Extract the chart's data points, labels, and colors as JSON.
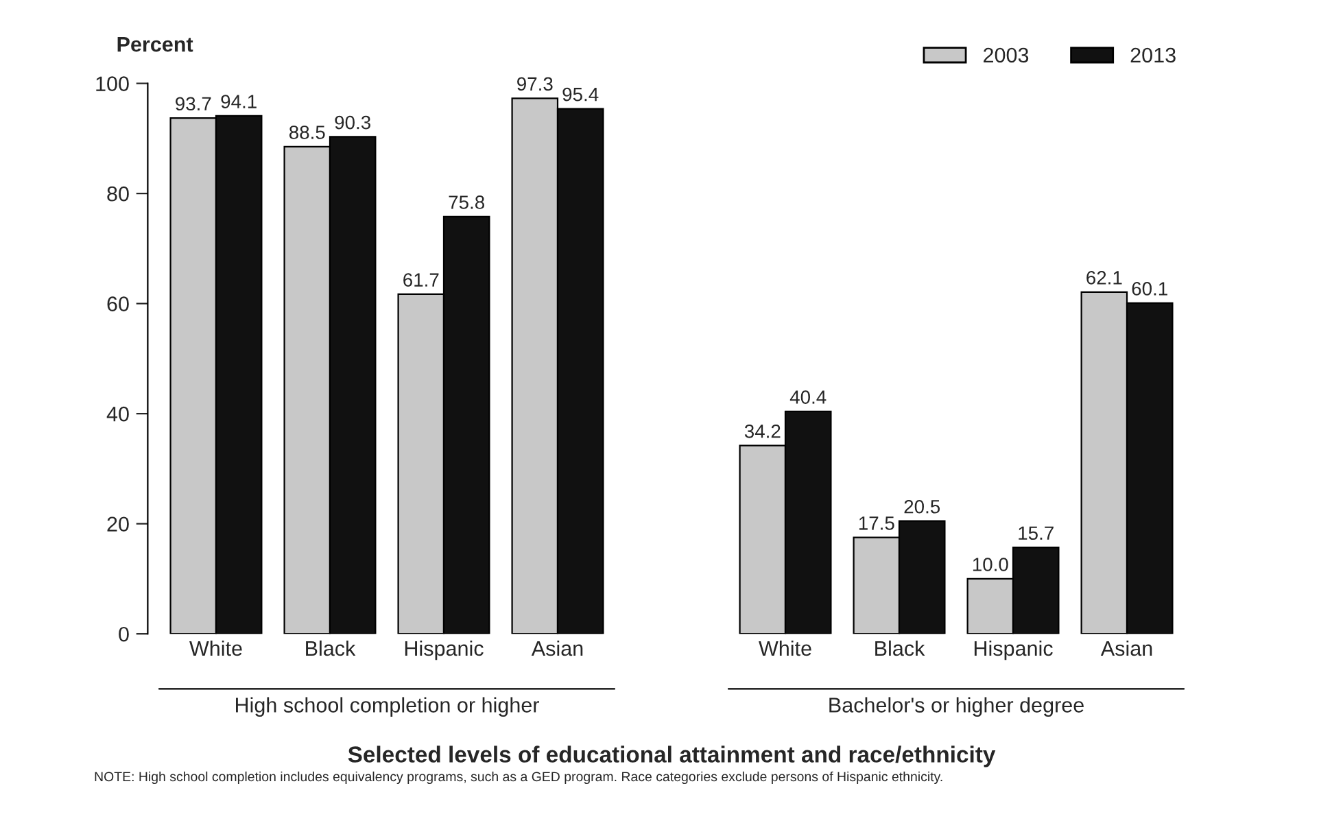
{
  "chart_data": {
    "type": "bar",
    "ylabel": "Percent",
    "xlabel": "Selected levels of educational attainment and race/ethnicity",
    "categories": [
      "White",
      "Black",
      "Hispanic",
      "Asian",
      null,
      "White",
      "Black",
      "Hispanic",
      "Asian"
    ],
    "series": [
      {
        "name": "2003",
        "color": "#c8c8c8",
        "values": [
          93.7,
          88.5,
          61.7,
          97.3,
          null,
          34.2,
          17.5,
          10.0,
          62.1
        ]
      },
      {
        "name": "2013",
        "color": "#111111",
        "values": [
          94.1,
          90.3,
          75.8,
          95.4,
          null,
          40.4,
          20.5,
          15.7,
          60.1
        ]
      }
    ],
    "value_labels": [
      [
        "93.7",
        "88.5",
        "61.7",
        "97.3",
        null,
        "34.2",
        "17.5",
        "10.0",
        "62.1"
      ],
      [
        "94.1",
        "90.3",
        "75.8",
        "95.4",
        null,
        "40.4",
        "20.5",
        "15.7",
        "60.1"
      ]
    ],
    "ylim": [
      0,
      100
    ],
    "yticks": [
      0,
      20,
      40,
      60,
      80,
      100
    ],
    "grid": false,
    "legend": "top right",
    "annotations": [
      "High school completion or higher",
      "Bachelor's or higher degree",
      "NOTE: High school completion includes equivalency programs, such as a GED program. Race categories exclude persons of Hispanic ethnicity."
    ]
  }
}
